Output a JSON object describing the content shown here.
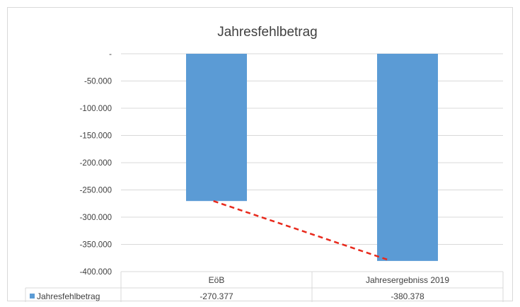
{
  "chart_data": {
    "type": "bar",
    "title": "Jahresfehlbetrag",
    "categories": [
      "EöB",
      "Jahresergebniss 2019"
    ],
    "series": [
      {
        "name": "Jahresfehlbetrag",
        "values": [
          -270377,
          -380378
        ],
        "value_labels": [
          "-270.377",
          "-380.378"
        ],
        "color": "#5b9bd5"
      }
    ],
    "ylim": [
      -400000,
      0
    ],
    "y_ticks": [
      0,
      -50000,
      -100000,
      -150000,
      -200000,
      -250000,
      -300000,
      -350000,
      -400000
    ],
    "y_tick_labels": [
      "-",
      "-50.000",
      "-100.000",
      "-150.000",
      "-200.000",
      "-250.000",
      "-300.000",
      "-350.000",
      "-400.000"
    ],
    "grid": true,
    "data_table": true,
    "trend_line": {
      "color": "#e8291c",
      "style": "dashed"
    },
    "xlabel": "",
    "ylabel": ""
  }
}
